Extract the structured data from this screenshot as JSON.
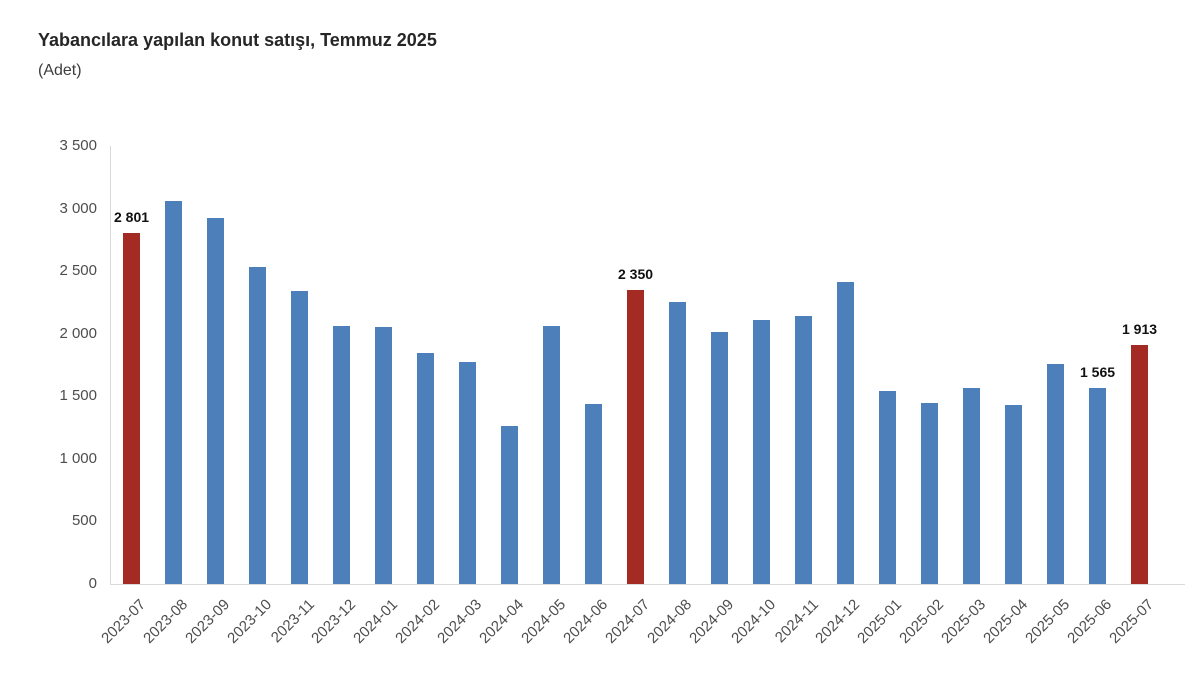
{
  "header": {
    "title": "Yabancılara yapılan konut satışı, Temmuz 2025",
    "subtitle_unit": "(Adet)"
  },
  "chart_data": {
    "type": "bar",
    "title": "Yabancılara yapılan konut satışı, Temmuz 2025",
    "subtitle": "(Adet)",
    "xlabel": "",
    "ylabel": "Adet",
    "ylim": [
      0,
      3500
    ],
    "grid": false,
    "legend": "none",
    "categories": [
      "2023-07",
      "2023-08",
      "2023-09",
      "2023-10",
      "2023-11",
      "2023-12",
      "2024-01",
      "2024-02",
      "2024-03",
      "2024-04",
      "2024-05",
      "2024-06",
      "2024-07",
      "2024-08",
      "2024-09",
      "2024-10",
      "2024-11",
      "2024-12",
      "2025-01",
      "2025-02",
      "2025-03",
      "2025-04",
      "2025-05",
      "2025-06",
      "2025-07"
    ],
    "values": [
      2801,
      3060,
      2925,
      2535,
      2340,
      2060,
      2055,
      1845,
      1775,
      1265,
      2060,
      1435,
      2350,
      2250,
      2010,
      2110,
      2145,
      2410,
      1545,
      1450,
      1570,
      1430,
      1760,
      1565,
      1913
    ],
    "highlighted_indices": [
      0,
      12,
      24
    ],
    "data_labels": [
      {
        "index": 0,
        "text": "2 801"
      },
      {
        "index": 12,
        "text": "2 350"
      },
      {
        "index": 23,
        "text": "1 565"
      },
      {
        "index": 24,
        "text": "1 913"
      }
    ],
    "yticks": [
      {
        "value": 3500,
        "label": "3 500"
      },
      {
        "value": 3000,
        "label": "3 000"
      },
      {
        "value": 2500,
        "label": "2 500"
      },
      {
        "value": 2000,
        "label": "2 000"
      },
      {
        "value": 1500,
        "label": "1 500"
      },
      {
        "value": 1000,
        "label": "1 000"
      },
      {
        "value": 500,
        "label": "500"
      },
      {
        "value": 0,
        "label": "0"
      }
    ],
    "colors": {
      "bar_default": "#4D7FBB",
      "bar_highlight": "#A42B23",
      "axis_line": "#D9D9D9",
      "tick_text": "#4D4D4D",
      "data_label_text": "#111111",
      "title_text": "#262626"
    }
  }
}
